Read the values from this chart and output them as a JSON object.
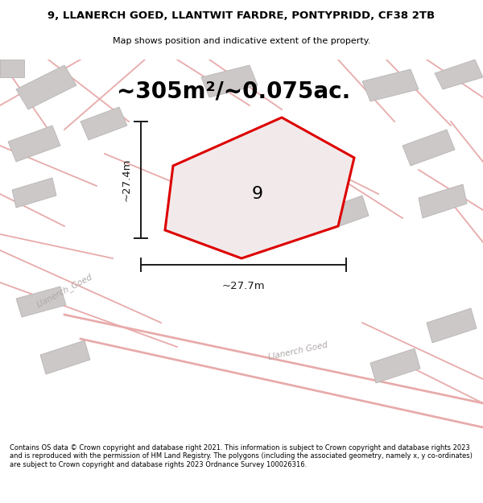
{
  "title_line1": "9, LLANERCH GOED, LLANTWIT FARDRE, PONTYPRIDD, CF38 2TB",
  "title_line2": "Map shows position and indicative extent of the property.",
  "area_text": "~305m²/~0.075ac.",
  "property_number": "9",
  "dim_vertical": "~27.4m",
  "dim_horizontal": "~27.7m",
  "footer_text": "Contains OS data © Crown copyright and database right 2021. This information is subject to Crown copyright and database rights 2023 and is reproduced with the permission of HM Land Registry. The polygons (including the associated geometry, namely x, y co-ordinates) are subject to Crown copyright and database rights 2023 Ordnance Survey 100026316.",
  "map_bg": "#eeebeb",
  "road_color": "#e8aaaa",
  "building_color": "#ccc8c8",
  "building_edge": "#b8b4b4",
  "boundary_color": "#dd0000",
  "dim_color": "#1a1a1a",
  "road_label_color": "#b0a8a8"
}
